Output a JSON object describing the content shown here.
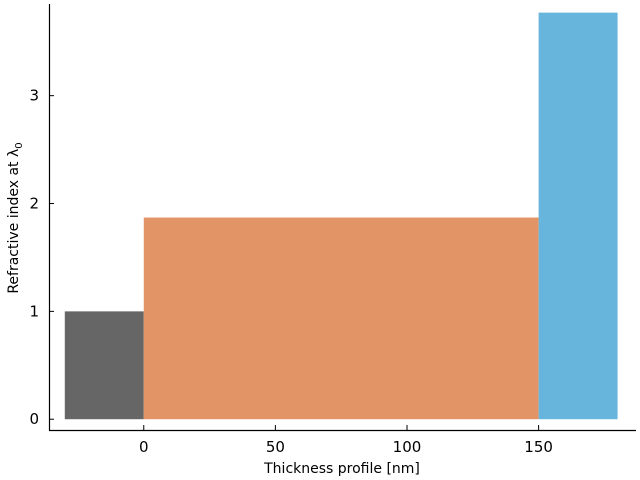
{
  "chart_data": {
    "type": "bar",
    "xlabel": "Thickness profile [nm]",
    "ylabel": "Refractive index at λ",
    "ylabel_subscript": "0",
    "xlim": [
      -36,
      187
    ],
    "ylim": [
      -0.1,
      3.85
    ],
    "x_ticks": [
      0,
      50,
      100,
      150
    ],
    "y_ticks": [
      0,
      1,
      2,
      3
    ],
    "grid": false,
    "layers": [
      {
        "x_start": -30,
        "x_end": 0,
        "value": 1.0,
        "color": "#666666"
      },
      {
        "x_start": 0,
        "x_end": 150,
        "value": 1.87,
        "color": "#E29467"
      },
      {
        "x_start": 150,
        "x_end": 180,
        "value": 3.77,
        "color": "#67B5DC"
      }
    ]
  }
}
